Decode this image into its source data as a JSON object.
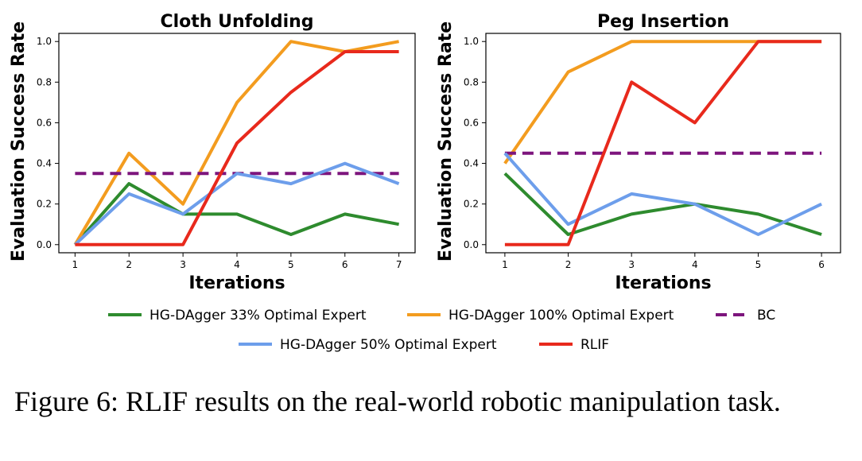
{
  "colors": {
    "green": "#2e8b2e",
    "orange": "#f39c1f",
    "blue": "#6d9eeb",
    "red": "#e8291c",
    "purple": "#7d157d"
  },
  "legend": [
    {
      "label": "HG-DAgger 33% Optimal Expert",
      "color": "#2e8b2e",
      "dash": false
    },
    {
      "label": "HG-DAgger 100% Optimal Expert",
      "color": "#f39c1f",
      "dash": false
    },
    {
      "label": "BC",
      "color": "#7d157d",
      "dash": true
    },
    {
      "label": "HG-DAgger 50% Optimal Expert",
      "color": "#6d9eeb",
      "dash": false
    },
    {
      "label": "RLIF",
      "color": "#e8291c",
      "dash": false
    }
  ],
  "chart_data": [
    {
      "type": "line",
      "title": "Cloth Unfolding",
      "xlabel": "Iterations",
      "ylabel": "Evaluation Success Rate",
      "x": [
        1,
        2,
        3,
        4,
        5,
        6,
        7
      ],
      "xticks": [
        "1",
        "2",
        "3",
        "4",
        "5",
        "6",
        "7"
      ],
      "yticks": [
        "0.0",
        "0.2",
        "0.4",
        "0.6",
        "0.8",
        "1.0"
      ],
      "ylim": [
        -0.04,
        1.04
      ],
      "grid": false,
      "series": [
        {
          "name": "HG-DAgger 33% Optimal Expert",
          "color": "#2e8b2e",
          "dash": false,
          "values": [
            0.0,
            0.3,
            0.15,
            0.15,
            0.05,
            0.15,
            0.1
          ]
        },
        {
          "name": "HG-DAgger 100% Optimal Expert",
          "color": "#f39c1f",
          "dash": false,
          "values": [
            0.0,
            0.45,
            0.2,
            0.7,
            1.0,
            0.95,
            1.0
          ]
        },
        {
          "name": "BC",
          "color": "#7d157d",
          "dash": true,
          "values": [
            0.35,
            0.35,
            0.35,
            0.35,
            0.35,
            0.35,
            0.35
          ]
        },
        {
          "name": "HG-DAgger 50% Optimal Expert",
          "color": "#6d9eeb",
          "dash": false,
          "values": [
            0.0,
            0.25,
            0.15,
            0.35,
            0.3,
            0.4,
            0.3
          ]
        },
        {
          "name": "RLIF",
          "color": "#e8291c",
          "dash": false,
          "values": [
            0.0,
            0.0,
            0.0,
            0.5,
            0.75,
            0.95,
            0.95
          ]
        }
      ]
    },
    {
      "type": "line",
      "title": "Peg Insertion",
      "xlabel": "Iterations",
      "ylabel": "Evaluation Success Rate",
      "x": [
        1,
        2,
        3,
        4,
        5,
        6
      ],
      "xticks": [
        "1",
        "2",
        "3",
        "4",
        "5",
        "6"
      ],
      "yticks": [
        "0.0",
        "0.2",
        "0.4",
        "0.6",
        "0.8",
        "1.0"
      ],
      "ylim": [
        -0.04,
        1.04
      ],
      "grid": false,
      "series": [
        {
          "name": "HG-DAgger 33% Optimal Expert",
          "color": "#2e8b2e",
          "dash": false,
          "values": [
            0.35,
            0.05,
            0.15,
            0.2,
            0.15,
            0.05
          ]
        },
        {
          "name": "HG-DAgger 100% Optimal Expert",
          "color": "#f39c1f",
          "dash": false,
          "values": [
            0.4,
            0.85,
            1.0,
            1.0,
            1.0,
            1.0
          ]
        },
        {
          "name": "BC",
          "color": "#7d157d",
          "dash": true,
          "values": [
            0.45,
            0.45,
            0.45,
            0.45,
            0.45,
            0.45
          ]
        },
        {
          "name": "HG-DAgger 50% Optimal Expert",
          "color": "#6d9eeb",
          "dash": false,
          "values": [
            0.45,
            0.1,
            0.25,
            0.2,
            0.05,
            0.2
          ]
        },
        {
          "name": "RLIF",
          "color": "#e8291c",
          "dash": false,
          "values": [
            0.0,
            0.0,
            0.8,
            0.6,
            1.0,
            1.0
          ]
        }
      ]
    }
  ],
  "caption": "Figure 6: RLIF results on the real-world robotic manipulation task."
}
